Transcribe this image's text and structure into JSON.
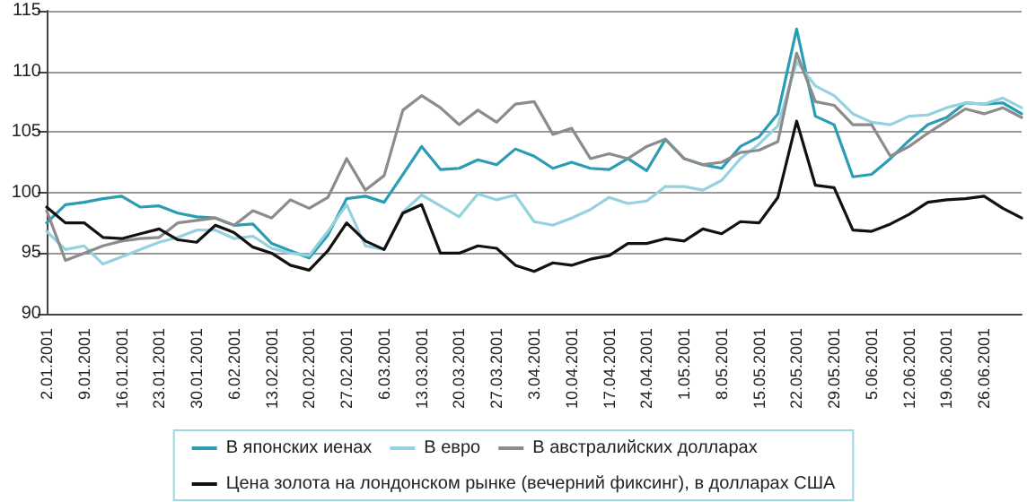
{
  "chart_data": {
    "type": "line",
    "categories": [
      "2.01.2001",
      null,
      "9.01.2001",
      null,
      "16.01.2001",
      null,
      "23.01.2001",
      null,
      "30.01.2001",
      null,
      "6.02.2001",
      null,
      "13.02.2001",
      null,
      "20.02.2001",
      null,
      "27.02.2001",
      null,
      "6.03.2001",
      null,
      "13.03.2001",
      null,
      "20.03.2001",
      null,
      "27.03.2001",
      null,
      "3.04.2001",
      null,
      "10.04.2001",
      null,
      "17.04.2001",
      null,
      "24.04.2001",
      null,
      "1.05.2001",
      null,
      "8.05.2001",
      null,
      "15.05.2001",
      null,
      "22.05.2001",
      null,
      "29.05.2001",
      null,
      "5.06.2001",
      null,
      "12.06.2001",
      null,
      "19.06.2001",
      null,
      "26.06.2001",
      null,
      null
    ],
    "series": [
      {
        "name": "В японских иенах",
        "color": "#2a9db5",
        "values": [
          97.5,
          99.0,
          99.2,
          99.5,
          99.7,
          98.8,
          98.9,
          98.3,
          98.0,
          97.9,
          97.3,
          97.4,
          95.8,
          95.2,
          94.6,
          96.5,
          99.5,
          99.7,
          99.2,
          101.5,
          103.8,
          101.9,
          102.0,
          102.7,
          102.3,
          103.6,
          103.0,
          102.0,
          102.5,
          102.0,
          101.9,
          102.8,
          101.8,
          104.4,
          102.8,
          102.3,
          102.0,
          103.8,
          104.6,
          106.5,
          113.5,
          106.3,
          105.6,
          101.3,
          101.5,
          102.8,
          104.3,
          105.6,
          106.2,
          107.4,
          107.3,
          107.4,
          106.5
        ]
      },
      {
        "name": "В евро",
        "color": "#94d2df",
        "values": [
          96.8,
          95.3,
          95.6,
          94.1,
          94.7,
          95.3,
          95.9,
          96.3,
          96.9,
          96.9,
          96.2,
          96.4,
          95.4,
          95.0,
          94.8,
          96.8,
          99.0,
          95.6,
          95.3,
          98.4,
          99.8,
          98.9,
          98.0,
          99.9,
          99.4,
          99.8,
          97.6,
          97.3,
          97.9,
          98.6,
          99.6,
          99.1,
          99.3,
          100.5,
          100.5,
          100.2,
          101.0,
          102.8,
          104.0,
          105.5,
          110.8,
          108.8,
          108.0,
          106.5,
          105.8,
          105.6,
          106.3,
          106.4,
          107.0,
          107.4,
          107.3,
          107.8,
          107.0
        ]
      },
      {
        "name": "В австралийских долларах",
        "color": "#8c8c8c",
        "values": [
          98.5,
          94.4,
          95.0,
          95.6,
          96.0,
          96.2,
          96.3,
          97.5,
          97.7,
          97.9,
          97.3,
          98.5,
          97.9,
          99.4,
          98.7,
          99.6,
          102.8,
          100.2,
          101.4,
          106.8,
          108.0,
          107.0,
          105.6,
          106.8,
          105.8,
          107.3,
          107.5,
          104.8,
          105.3,
          102.8,
          103.2,
          102.8,
          103.8,
          104.4,
          102.8,
          102.3,
          102.5,
          103.3,
          103.5,
          104.2,
          111.5,
          107.5,
          107.2,
          105.6,
          105.6,
          103.0,
          103.8,
          104.9,
          105.9,
          106.9,
          106.5,
          107.0,
          106.2
        ]
      },
      {
        "name": "Цена золота на лондонском рынке (вечерний фиксинг), в долларах США",
        "color": "#111111",
        "values": [
          98.8,
          97.5,
          97.5,
          96.3,
          96.2,
          96.6,
          97.0,
          96.1,
          95.9,
          97.3,
          96.7,
          95.5,
          95.0,
          94.0,
          93.6,
          95.2,
          97.5,
          96.0,
          95.3,
          98.3,
          99.0,
          95.0,
          95.0,
          95.6,
          95.4,
          94.0,
          93.5,
          94.2,
          94.0,
          94.5,
          94.8,
          95.8,
          95.8,
          96.2,
          96.0,
          97.0,
          96.6,
          97.6,
          97.5,
          99.6,
          105.9,
          100.6,
          100.4,
          96.9,
          96.8,
          97.4,
          98.2,
          99.2,
          99.4,
          99.5,
          99.7,
          98.7,
          97.9
        ]
      }
    ],
    "ylim": [
      90,
      115
    ],
    "yticks": [
      90,
      95,
      100,
      105,
      110,
      115
    ],
    "grid": "y",
    "legend": "bottom",
    "marker": "none",
    "line_style": "solid"
  }
}
